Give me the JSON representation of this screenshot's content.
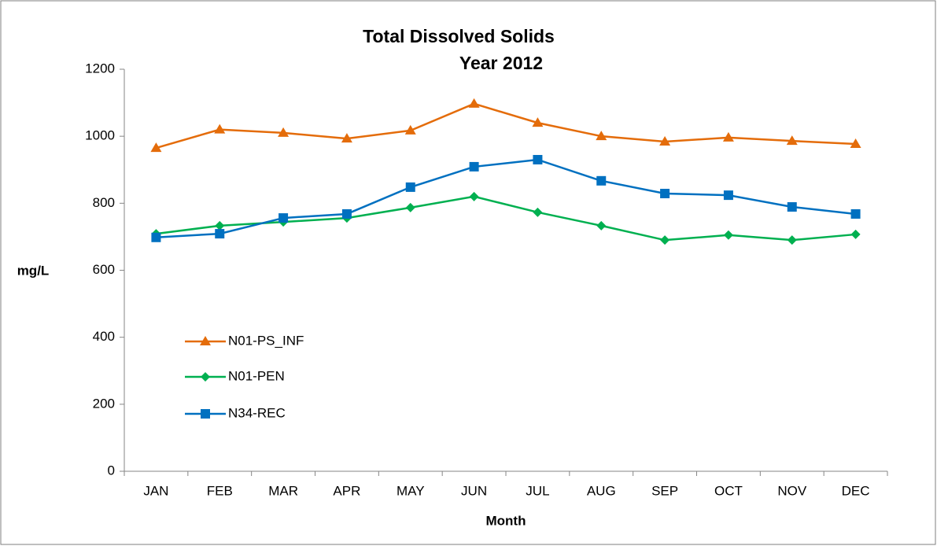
{
  "chart_data": {
    "type": "line",
    "title": "Total Dissolved Solids",
    "subtitle": "Year 2012",
    "x_label": "Month",
    "y_label": "mg/L",
    "categories": [
      "JAN",
      "FEB",
      "MAR",
      "APR",
      "MAY",
      "JUN",
      "JUL",
      "AUG",
      "SEP",
      "OCT",
      "NOV",
      "DEC"
    ],
    "ylim": [
      0,
      1200
    ],
    "yticks": [
      0,
      200,
      400,
      600,
      800,
      1000,
      1200
    ],
    "grid": false,
    "legend": "left",
    "series": [
      {
        "name": "N01-PS_INF",
        "color": "#e46c0a",
        "marker": "triangle",
        "values": [
          965,
          1020,
          1010,
          993,
          1017,
          1097,
          1040,
          1000,
          984,
          996,
          986,
          977
        ]
      },
      {
        "name": "N01-PEN",
        "color": "#00b050",
        "marker": "diamond",
        "values": [
          709,
          733,
          744,
          756,
          787,
          820,
          773,
          733,
          690,
          705,
          690,
          707
        ]
      },
      {
        "name": "N34-REC",
        "color": "#0070c0",
        "marker": "square",
        "values": [
          698,
          709,
          756,
          768,
          848,
          909,
          930,
          867,
          829,
          824,
          789,
          768
        ]
      }
    ]
  }
}
